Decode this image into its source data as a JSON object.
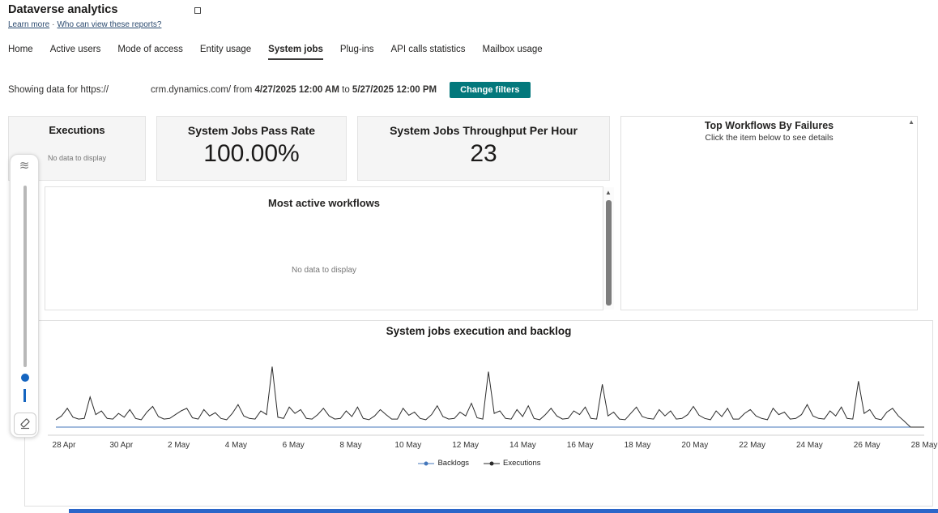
{
  "header": {
    "title": "Dataverse analytics",
    "learn_more": "Learn more",
    "link_separator": "·",
    "who_can_view": "Who can view these reports?"
  },
  "tabs": [
    {
      "label": "Home"
    },
    {
      "label": "Active users"
    },
    {
      "label": "Mode of access"
    },
    {
      "label": "Entity usage"
    },
    {
      "label": "System jobs"
    },
    {
      "label": "Plug-ins"
    },
    {
      "label": "API calls statistics"
    },
    {
      "label": "Mailbox usage"
    }
  ],
  "active_tab": "System jobs",
  "filter_bar": {
    "showing_prefix": "Showing data for",
    "url_scheme": "https://",
    "url_host": "crm.dynamics.com/",
    "from_word": "from",
    "from_datetime": "4/27/2025 12:00 AM",
    "to_word": "to",
    "to_datetime": "5/27/2025 12:00 PM",
    "change_filters_label": "Change filters"
  },
  "cards": {
    "executions": {
      "title": "Executions",
      "empty_message": "No data to display"
    },
    "pass_rate": {
      "title": "System Jobs Pass Rate",
      "value": "100.00%"
    },
    "throughput": {
      "title": "System Jobs Throughput Per Hour",
      "value": "23"
    }
  },
  "top_workflows_panel": {
    "title": "Top Workflows By Failures",
    "subtitle": "Click the item below to see details",
    "scroll_up_glyph": "▲"
  },
  "most_active_panel": {
    "title": "Most active workflows",
    "empty_message": "No data to display",
    "scroll_up_glyph": "▲"
  },
  "chart_data": {
    "type": "line",
    "title": "System jobs execution and backlog",
    "x_tick_labels": [
      "28 Apr",
      "30 Apr",
      "2 May",
      "4 May",
      "6 May",
      "8 May",
      "10 May",
      "12 May",
      "14 May",
      "16 May",
      "18 May",
      "20 May",
      "22 May",
      "24 May",
      "26 May",
      "28 May"
    ],
    "x_range": [
      "27 Apr 2025",
      "28 May 2025"
    ],
    "ylim": [
      0,
      100
    ],
    "grid": false,
    "legend_position": "bottom",
    "series": [
      {
        "name": "Backlogs",
        "color": "#4477bb",
        "constant_value": 0
      },
      {
        "name": "Executions",
        "color": "#2b2b2b",
        "values": [
          4,
          10,
          22,
          8,
          5,
          6,
          40,
          12,
          18,
          6,
          5,
          14,
          8,
          20,
          6,
          4,
          16,
          25,
          9,
          5,
          6,
          12,
          18,
          22,
          7,
          5,
          20,
          10,
          15,
          6,
          4,
          14,
          28,
          10,
          6,
          5,
          18,
          12,
          88,
          8,
          6,
          24,
          14,
          20,
          6,
          5,
          12,
          22,
          10,
          5,
          6,
          18,
          9,
          24,
          6,
          4,
          10,
          20,
          12,
          5,
          5,
          22,
          11,
          16,
          6,
          4,
          12,
          26,
          9,
          5,
          6,
          16,
          10,
          30,
          7,
          5,
          80,
          14,
          18,
          6,
          5,
          20,
          9,
          26,
          6,
          4,
          12,
          22,
          10,
          5,
          6,
          18,
          12,
          24,
          6,
          5,
          60,
          10,
          16,
          5,
          4,
          14,
          24,
          9,
          6,
          5,
          20,
          10,
          18,
          5,
          6,
          12,
          25,
          11,
          6,
          4,
          18,
          9,
          22,
          5,
          5,
          14,
          20,
          10,
          6,
          4,
          22,
          12,
          16,
          5,
          6,
          12,
          28,
          10,
          6,
          5,
          18,
          10,
          24,
          6,
          5,
          65,
          14,
          20,
          6,
          4,
          16,
          22,
          10,
          2
        ]
      }
    ]
  },
  "colors": {
    "accent_teal": "#03787c",
    "active_tab_underline": "#3b3a39",
    "slider_blue": "#1565c0",
    "backlogs_blue": "#4477bb",
    "executions_black": "#2b2b2b",
    "bottom_bar_blue": "#2b66c9"
  }
}
